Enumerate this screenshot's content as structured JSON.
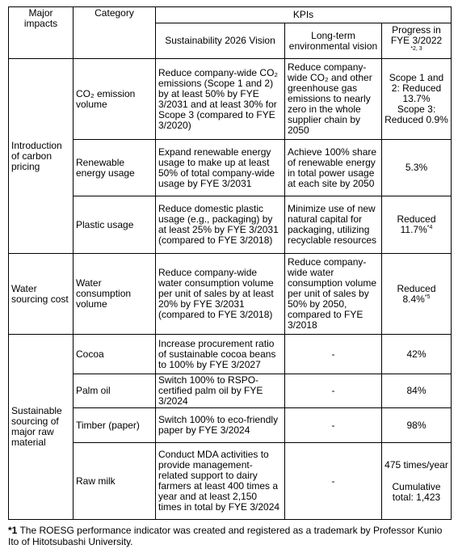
{
  "header": {
    "major_impacts": "Major impacts",
    "category": "Category",
    "kpis": "KPIs",
    "vision_2026": "Sustainability 2026 Vision",
    "long_term": "Long-term environmental vision",
    "progress": "Progress in FYE 3/2022",
    "progress_note": "*2, 3"
  },
  "rows": [
    {
      "impact": "Introduction of carbon pricing",
      "category": "CO₂ emission volume",
      "vision": "Reduce company-wide CO₂ emissions (Scope 1 and 2) by at least 50% by FYE 3/2031 and at least 30% for Scope 3 (compared to FYE 3/2020)",
      "long_term": "Reduce company-wide CO₂ and other greenhouse gas emissions to nearly zero in the whole supplier chain by 2050",
      "progress": [
        "Scope 1 and 2: Reduced 13.7%",
        "Scope 3: Reduced 0.9%"
      ]
    },
    {
      "category": "Renewable energy usage",
      "vision": "Expand renewable energy usage to make up at least 50% of total company-wide usage by FYE 3/2031",
      "long_term": "Achieve 100% share of renewable energy in total power usage at each site by 2050",
      "progress": [
        "5.3%"
      ]
    },
    {
      "category": "Plastic usage",
      "vision": "Reduce domestic plastic usage (e.g., packaging) by at least 25% by FYE 3/2031 (compared to FYE 3/2018)",
      "long_term": "Minimize use of new natural capital for packaging, utilizing recyclable resources",
      "progress": [
        "Reduced 11.7%"
      ],
      "note": "*4"
    },
    {
      "impact": "Water sourcing cost",
      "category": "Water consumption volume",
      "vision": "Reduce company-wide water consumption volume per unit of sales by at least 20% by FYE 3/2031 (compared to FYE 3/2018)",
      "long_term": "Reduce company-wide water consumption volume per unit of sales by 50% by 2050, compared to FYE 3/2018",
      "progress": [
        "Reduced 8.4%"
      ],
      "note": "*5"
    },
    {
      "impact": "Sustainable sourcing of major raw material",
      "category": "Cocoa",
      "vision": "Increase procurement ratio of sustainable cocoa beans to 100% by FYE 3/2027",
      "long_term": "-",
      "progress": [
        "42%"
      ]
    },
    {
      "category": "Palm oil",
      "vision": "Switch 100% to RSPO-certified palm oil by FYE 3/2024",
      "long_term": "-",
      "progress": [
        "84%"
      ]
    },
    {
      "category": "Timber (paper)",
      "vision": "Switch 100% to eco-friendly paper by FYE 3/2024",
      "long_term": "-",
      "progress": [
        "98%"
      ]
    },
    {
      "category": "Raw milk",
      "vision": "Conduct MDA activities to provide management-related support to dairy farmers at least 400 times a year and at least 2,150 times in total by FYE 3/2024",
      "long_term": "-",
      "progress": [
        "475 times/year",
        "Cumulative total: 1,423"
      ]
    }
  ],
  "footnote": {
    "mark": "*1",
    "text": "The ROESG performance indicator was created and registered as a trademark by Professor Kunio Ito of Hitotsubashi University."
  }
}
